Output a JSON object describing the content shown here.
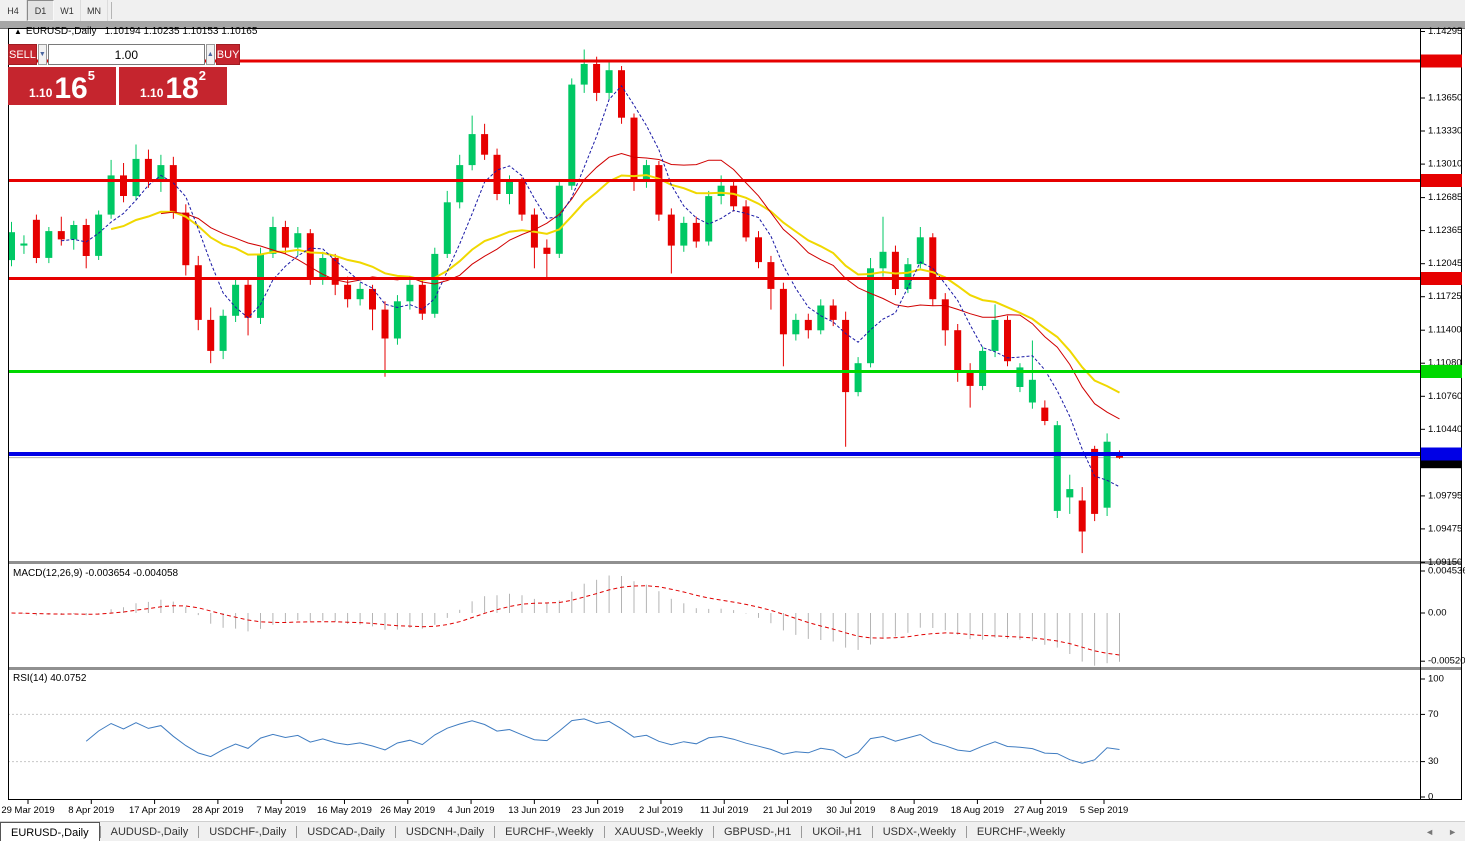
{
  "toolbar": {
    "timeframes": [
      {
        "label": "H4",
        "active": false
      },
      {
        "label": "D1",
        "active": true
      },
      {
        "label": "W1",
        "active": false
      },
      {
        "label": "MN",
        "active": false
      }
    ]
  },
  "chart": {
    "title_marker": "▲",
    "symbol_title": "EURUSD-,Daily",
    "ohlc_readout": "1.10194 1.10235 1.10153 1.10165",
    "trade_panel": {
      "sell_label": "SELL",
      "buy_label": "BUY",
      "volume": "1.00",
      "spin_down_icon": "▼",
      "spin_up_icon": "▲",
      "sell_price": {
        "prefix": "1.10",
        "big": "16",
        "sup": "5"
      },
      "buy_price": {
        "prefix": "1.10",
        "big": "18",
        "sup": "2"
      },
      "accent_red": "#c5252e"
    },
    "price_ticks": [
      {
        "label": "1.14295",
        "value": 1.14295
      },
      {
        "label": "1.13650",
        "value": 1.1365
      },
      {
        "label": "1.13330",
        "value": 1.1333
      },
      {
        "label": "1.13010",
        "value": 1.1301
      },
      {
        "label": "1.12685",
        "value": 1.12685
      },
      {
        "label": "1.12365",
        "value": 1.12365
      },
      {
        "label": "1.12045",
        "value": 1.12045
      },
      {
        "label": "1.11725",
        "value": 1.11725
      },
      {
        "label": "1.11400",
        "value": 1.114
      },
      {
        "label": "1.11080",
        "value": 1.1108
      },
      {
        "label": "1.10760",
        "value": 1.1076
      },
      {
        "label": "1.10440",
        "value": 1.1044
      },
      {
        "label": "1.09795",
        "value": 1.09795
      },
      {
        "label": "1.09475",
        "value": 1.09475
      },
      {
        "label": "1.09150",
        "value": 1.0915
      }
    ],
    "levels": [
      {
        "label": "1.14009",
        "value": 1.14009,
        "color": "#e60000",
        "thickness": 3
      },
      {
        "label": "1.12851",
        "value": 1.12851,
        "color": "#e60000",
        "thickness": 3
      },
      {
        "label": "1.11901",
        "value": 1.11901,
        "color": "#e60000",
        "thickness": 3
      },
      {
        "label": "1.11000",
        "value": 1.11,
        "color": "#00d800",
        "thickness": 3
      },
      {
        "label": "1.10201",
        "value": 1.10201,
        "color": "#0000e6",
        "thickness": 4
      }
    ],
    "bid": {
      "label": "1.10165",
      "value": 1.10165
    }
  },
  "chart_data": {
    "type": "candlestick",
    "symbol": "EURUSD-",
    "timeframe": "Daily",
    "ylim": [
      1.0915,
      1.14295
    ],
    "colors": {
      "bull": "#00c864",
      "bear": "#e60000",
      "ma_fast_blue": "#1a1aa6",
      "ma_mid_red": "#d00000",
      "ma_slow_yellow": "#f0d800",
      "macd_hist": "#b4b4b4",
      "macd_signal": "#e00000",
      "rsi_line": "#3f7cc1",
      "bid_line": "#b0b0b0",
      "badge_black": "#000000"
    },
    "moving_averages": [
      {
        "name": "fast",
        "method": "sma",
        "period": 5,
        "style": "dashed",
        "color": "#1a1aa6"
      },
      {
        "name": "mid",
        "method": "sma",
        "period": 13,
        "style": "solid",
        "color": "#d00000"
      },
      {
        "name": "slow",
        "method": "ema",
        "period": 21,
        "style": "solid",
        "color": "#f0d800"
      }
    ],
    "ohlc": [
      [
        1.1208,
        1.1245,
        1.1202,
        1.1235
      ],
      [
        1.1222,
        1.1232,
        1.1214,
        1.1224
      ],
      [
        1.1247,
        1.1252,
        1.1205,
        1.121
      ],
      [
        1.121,
        1.124,
        1.1205,
        1.1236
      ],
      [
        1.1236,
        1.125,
        1.1222,
        1.1228
      ],
      [
        1.1228,
        1.1246,
        1.1218,
        1.1242
      ],
      [
        1.1242,
        1.1248,
        1.12,
        1.1212
      ],
      [
        1.1212,
        1.1256,
        1.1208,
        1.1252
      ],
      [
        1.1252,
        1.1305,
        1.1248,
        1.129
      ],
      [
        1.129,
        1.1302,
        1.1264,
        1.127
      ],
      [
        1.127,
        1.132,
        1.1266,
        1.1306
      ],
      [
        1.1306,
        1.1315,
        1.1278,
        1.1284
      ],
      [
        1.1284,
        1.131,
        1.1274,
        1.13
      ],
      [
        1.13,
        1.1308,
        1.1248,
        1.1254
      ],
      [
        1.1254,
        1.1262,
        1.1193,
        1.1203
      ],
      [
        1.1203,
        1.1212,
        1.114,
        1.115
      ],
      [
        1.115,
        1.1162,
        1.1108,
        1.112
      ],
      [
        1.112,
        1.116,
        1.1112,
        1.1154
      ],
      [
        1.1154,
        1.119,
        1.1148,
        1.1184
      ],
      [
        1.1184,
        1.119,
        1.1135,
        1.1152
      ],
      [
        1.1152,
        1.122,
        1.1146,
        1.1214
      ],
      [
        1.1214,
        1.125,
        1.121,
        1.124
      ],
      [
        1.124,
        1.1246,
        1.1214,
        1.122
      ],
      [
        1.122,
        1.124,
        1.1212,
        1.1234
      ],
      [
        1.1234,
        1.1238,
        1.1184,
        1.119
      ],
      [
        1.119,
        1.1216,
        1.1184,
        1.121
      ],
      [
        1.121,
        1.1214,
        1.1174,
        1.1184
      ],
      [
        1.1184,
        1.1192,
        1.1162,
        1.117
      ],
      [
        1.117,
        1.1186,
        1.1164,
        1.118
      ],
      [
        1.118,
        1.1184,
        1.114,
        1.116
      ],
      [
        1.116,
        1.1168,
        1.1095,
        1.1132
      ],
      [
        1.1132,
        1.1174,
        1.1126,
        1.1168
      ],
      [
        1.1168,
        1.119,
        1.116,
        1.1184
      ],
      [
        1.1184,
        1.1188,
        1.115,
        1.1156
      ],
      [
        1.1156,
        1.122,
        1.1152,
        1.1214
      ],
      [
        1.1214,
        1.1275,
        1.121,
        1.1264
      ],
      [
        1.1264,
        1.131,
        1.1258,
        1.13
      ],
      [
        1.13,
        1.1348,
        1.1295,
        1.133
      ],
      [
        1.133,
        1.134,
        1.1305,
        1.131
      ],
      [
        1.131,
        1.1316,
        1.1266,
        1.1272
      ],
      [
        1.1272,
        1.129,
        1.1262,
        1.1284
      ],
      [
        1.1284,
        1.1288,
        1.1246,
        1.1252
      ],
      [
        1.1252,
        1.1258,
        1.12,
        1.122
      ],
      [
        1.122,
        1.1228,
        1.119,
        1.1214
      ],
      [
        1.1214,
        1.1284,
        1.121,
        1.128
      ],
      [
        1.128,
        1.1384,
        1.1276,
        1.1378
      ],
      [
        1.1378,
        1.1412,
        1.137,
        1.1398
      ],
      [
        1.1398,
        1.1405,
        1.1362,
        1.137
      ],
      [
        1.137,
        1.14,
        1.1364,
        1.1392
      ],
      [
        1.1392,
        1.1396,
        1.134,
        1.1346
      ],
      [
        1.1346,
        1.135,
        1.1275,
        1.1284
      ],
      [
        1.1284,
        1.1305,
        1.1278,
        1.13
      ],
      [
        1.13,
        1.1304,
        1.1246,
        1.1252
      ],
      [
        1.1252,
        1.1258,
        1.1195,
        1.1222
      ],
      [
        1.1222,
        1.125,
        1.1216,
        1.1244
      ],
      [
        1.1244,
        1.125,
        1.122,
        1.1226
      ],
      [
        1.1226,
        1.1275,
        1.1222,
        1.127
      ],
      [
        1.127,
        1.129,
        1.1262,
        1.128
      ],
      [
        1.128,
        1.1284,
        1.1255,
        1.126
      ],
      [
        1.126,
        1.1266,
        1.1226,
        1.123
      ],
      [
        1.123,
        1.1236,
        1.12,
        1.1206
      ],
      [
        1.1206,
        1.1212,
        1.116,
        1.118
      ],
      [
        1.118,
        1.1186,
        1.1105,
        1.1136
      ],
      [
        1.1136,
        1.1156,
        1.113,
        1.115
      ],
      [
        1.115,
        1.1156,
        1.1132,
        1.114
      ],
      [
        1.114,
        1.117,
        1.1136,
        1.1164
      ],
      [
        1.1164,
        1.117,
        1.1144,
        1.115
      ],
      [
        1.115,
        1.1158,
        1.1027,
        1.108
      ],
      [
        1.108,
        1.1114,
        1.1076,
        1.1108
      ],
      [
        1.1108,
        1.121,
        1.1104,
        1.12
      ],
      [
        1.12,
        1.125,
        1.1192,
        1.1216
      ],
      [
        1.1216,
        1.1222,
        1.1174,
        1.118
      ],
      [
        1.118,
        1.121,
        1.1176,
        1.1204
      ],
      [
        1.1204,
        1.124,
        1.12,
        1.123
      ],
      [
        1.123,
        1.1234,
        1.1164,
        1.117
      ],
      [
        1.117,
        1.1176,
        1.1125,
        1.114
      ],
      [
        1.114,
        1.1146,
        1.109,
        1.11
      ],
      [
        1.11,
        1.1108,
        1.1065,
        1.1086
      ],
      [
        1.1086,
        1.1124,
        1.1082,
        1.112
      ],
      [
        1.112,
        1.1165,
        1.1114,
        1.115
      ],
      [
        1.115,
        1.1154,
        1.1105,
        1.111
      ],
      [
        1.1085,
        1.1108,
        1.108,
        1.1104
      ],
      [
        1.107,
        1.113,
        1.1064,
        1.1092
      ],
      [
        1.1065,
        1.1072,
        1.1048,
        1.1052
      ],
      [
        1.0965,
        1.1052,
        1.0958,
        1.1048
      ],
      [
        1.0978,
        1.1,
        1.0962,
        1.0986
      ],
      [
        1.0975,
        1.0988,
        1.0924,
        1.0945
      ],
      [
        1.1025,
        1.1028,
        1.0955,
        1.0962
      ],
      [
        1.0968,
        1.104,
        1.096,
        1.1032
      ],
      [
        1.10194,
        1.10235,
        1.10153,
        1.10165
      ]
    ]
  },
  "macd_panel": {
    "label": "MACD(12,26,9) -0.003654 -0.004058",
    "params": [
      12,
      26,
      9
    ],
    "axis": [
      {
        "label": "0.004536",
        "value": 0.004536
      },
      {
        "label": "0.00",
        "value": 0
      },
      {
        "label": "-0.005205",
        "value": -0.005205
      }
    ]
  },
  "rsi_panel": {
    "label": "RSI(14) 40.0752",
    "period": 14,
    "value": 40.0752,
    "levels": [
      70,
      30
    ],
    "axis": [
      {
        "label": "100",
        "value": 100
      },
      {
        "label": "70",
        "value": 70
      },
      {
        "label": "30",
        "value": 30
      },
      {
        "label": "0",
        "value": 0
      }
    ]
  },
  "time_axis": [
    "29 Mar 2019",
    "8 Apr 2019",
    "17 Apr 2019",
    "28 Apr 2019",
    "7 May 2019",
    "16 May 2019",
    "26 May 2019",
    "4 Jun 2019",
    "13 Jun 2019",
    "23 Jun 2019",
    "2 Jul 2019",
    "11 Jul 2019",
    "21 Jul 2019",
    "30 Jul 2019",
    "8 Aug 2019",
    "18 Aug 2019",
    "27 Aug 2019",
    "5 Sep 2019"
  ],
  "tabs": {
    "items": [
      {
        "label": "EURUSD-,Daily",
        "active": true
      },
      {
        "label": "AUDUSD-,Daily",
        "active": false
      },
      {
        "label": "USDCHF-,Daily",
        "active": false
      },
      {
        "label": "USDCAD-,Daily",
        "active": false
      },
      {
        "label": "USDCNH-,Daily",
        "active": false
      },
      {
        "label": "EURCHF-,Weekly",
        "active": false
      },
      {
        "label": "XAUUSD-,Weekly",
        "active": false
      },
      {
        "label": "GBPUSD-,H1",
        "active": false
      },
      {
        "label": "UKOil-,H1",
        "active": false
      },
      {
        "label": "USDX-,Weekly",
        "active": false
      },
      {
        "label": "EURCHF-,Weekly",
        "active": false
      }
    ],
    "scroll_left_icon": "◄",
    "scroll_right_icon": "►"
  }
}
